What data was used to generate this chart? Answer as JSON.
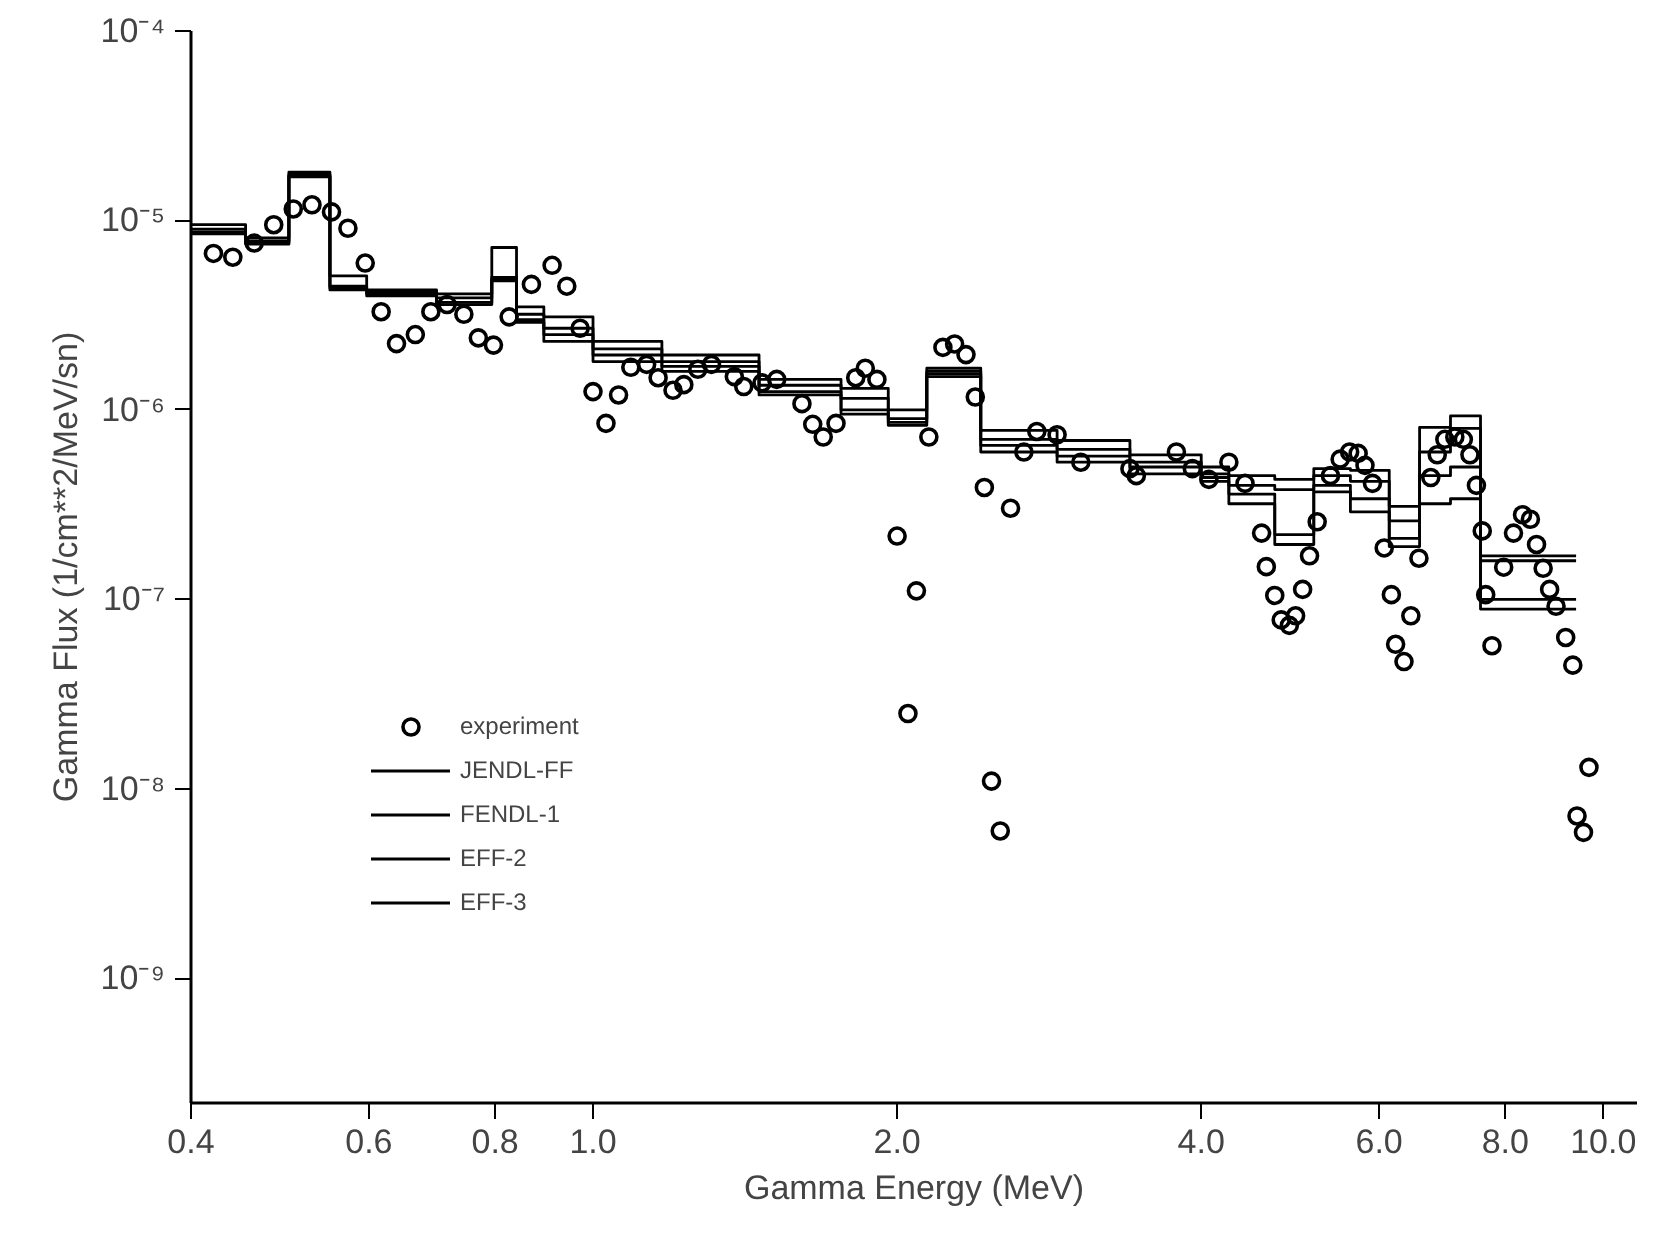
{
  "chart_data": {
    "type": "step",
    "xlabel": "Gamma Energy (MeV)",
    "ylabel": "Gamma Flux (1/cm**2/MeV/sn)",
    "log": "xy",
    "grid": false,
    "legend": "bottom left",
    "line_style": "solid",
    "xlim": [
      0.4,
      10.8
    ],
    "ylim": [
      2.2e-10,
      0.0001
    ],
    "xticks": [
      {
        "value": 0.4,
        "label": "0.4"
      },
      {
        "value": 0.6,
        "label": "0.6"
      },
      {
        "value": 0.8,
        "label": "0.8"
      },
      {
        "value": 1,
        "label": "1.0"
      },
      {
        "value": 2,
        "label": "2.0"
      },
      {
        "value": 4,
        "label": "4.0"
      },
      {
        "value": 6,
        "label": "6.0"
      },
      {
        "value": 8,
        "label": "8.0"
      },
      {
        "value": 10,
        "label": "10.0"
      }
    ],
    "yticks": [
      {
        "value": 1e-09,
        "label": "10⁻⁹"
      },
      {
        "value": 1e-08,
        "label": "10⁻⁸"
      },
      {
        "value": 1e-07,
        "label": "10⁻⁷"
      },
      {
        "value": 1e-06,
        "label": "10⁻⁶"
      },
      {
        "value": 1e-05,
        "label": "10⁻⁵"
      },
      {
        "value": 0.0001,
        "label": "10⁻⁴"
      }
    ],
    "series": [
      {
        "name": "experiment",
        "type": "scatter",
        "marker": "circle",
        "color": "#000000",
        "x": [
          0.421,
          0.44,
          0.462,
          0.483,
          0.505,
          0.527,
          0.551,
          0.572,
          0.595,
          0.617,
          0.639,
          0.667,
          0.691,
          0.717,
          0.745,
          0.77,
          0.797,
          0.826,
          0.869,
          0.911,
          0.942,
          0.971,
          1.0,
          1.03,
          1.06,
          1.09,
          1.13,
          1.16,
          1.2,
          1.23,
          1.27,
          1.31,
          1.38,
          1.41,
          1.47,
          1.52,
          1.61,
          1.65,
          1.69,
          1.74,
          1.82,
          1.86,
          1.91,
          2.0,
          2.05,
          2.09,
          2.15,
          2.22,
          2.28,
          2.34,
          2.39,
          2.44,
          2.48,
          2.53,
          2.59,
          2.67,
          2.75,
          2.88,
          3.04,
          3.4,
          3.45,
          3.78,
          3.92,
          4.07,
          4.26,
          4.42,
          4.59,
          4.64,
          4.73,
          4.8,
          4.89,
          4.96,
          5.04,
          5.12,
          5.21,
          5.37,
          5.49,
          5.61,
          5.72,
          5.81,
          5.91,
          6.07,
          6.17,
          6.23,
          6.35,
          6.45,
          6.57,
          6.75,
          6.85,
          6.97,
          7.13,
          7.27,
          7.38,
          7.49,
          7.59,
          7.65,
          7.76,
          7.97,
          8.15,
          8.32,
          8.47,
          8.59,
          8.72,
          8.85,
          8.98,
          9.18,
          9.33,
          9.42,
          9.56,
          9.68
        ],
        "values": [
          6.7e-06,
          6.4e-06,
          7.6e-06,
          9.5e-06,
          1.15e-05,
          1.21e-05,
          1.11e-05,
          9.1e-06,
          5.96e-06,
          3.3e-06,
          2.24e-06,
          2.5e-06,
          3.3e-06,
          3.6e-06,
          3.2e-06,
          2.4e-06,
          2.2e-06,
          3.1e-06,
          4.6e-06,
          5.8e-06,
          4.5e-06,
          2.7e-06,
          1.25e-06,
          8.5e-07,
          1.2e-06,
          1.68e-06,
          1.74e-06,
          1.48e-06,
          1.27e-06,
          1.36e-06,
          1.64e-06,
          1.74e-06,
          1.5e-06,
          1.33e-06,
          1.39e-06,
          1.45e-06,
          1.08e-06,
          8.4e-07,
          7.2e-07,
          8.5e-07,
          1.48e-06,
          1.66e-06,
          1.45e-06,
          2.16e-07,
          2.5e-08,
          1.11e-07,
          7.2e-07,
          2.14e-06,
          2.23e-06,
          1.96e-06,
          1.17e-06,
          3.9e-07,
          1.1e-08,
          6e-09,
          3.03e-07,
          6e-07,
          7.7e-07,
          7.4e-07,
          5.3e-07,
          4.9e-07,
          4.5e-07,
          6e-07,
          4.9e-07,
          4.3e-07,
          5.3e-07,
          4.1e-07,
          2.24e-07,
          1.49e-07,
          1.05e-07,
          7.8e-08,
          7.3e-08,
          8.2e-08,
          1.13e-07,
          1.7e-07,
          2.57e-07,
          4.5e-07,
          5.5e-07,
          6e-07,
          5.9e-07,
          5.1e-07,
          4.1e-07,
          1.87e-07,
          1.06e-07,
          5.8e-08,
          4.7e-08,
          8.2e-08,
          1.65e-07,
          4.4e-07,
          5.8e-07,
          7e-07,
          7.2e-07,
          7e-07,
          5.8e-07,
          4e-07,
          2.3e-07,
          1.06e-07,
          5.7e-08,
          1.48e-07,
          2.24e-07,
          2.8e-07,
          2.65e-07,
          1.95e-07,
          1.46e-07,
          1.13e-07,
          9.2e-08,
          6.3e-08,
          4.5e-08,
          7.2e-09,
          5.9e-09,
          1.3e-08
        ]
      },
      {
        "name": "JENDL-FF",
        "color": "#000000",
        "x": [
          0.4,
          0.453,
          0.5,
          0.549,
          0.597,
          0.7,
          0.794,
          0.84,
          0.894,
          1.0,
          1.17,
          1.46,
          1.76,
          1.96,
          2.14,
          2.42,
          2.88,
          3.4,
          4.0,
          4.26,
          4.73,
          5.17,
          5.62,
          6.14,
          6.58,
          7.06,
          7.56,
          9.4
        ],
        "values": [
          9.5e-06,
          8.1e-06,
          1.8e-05,
          5.1e-06,
          4.3e-06,
          4.1e-06,
          7.2e-06,
          3.5e-06,
          3.1e-06,
          2.3e-06,
          1.95e-06,
          1.45e-06,
          1.3e-06,
          1e-06,
          1.66e-06,
          7.8e-07,
          6.9e-07,
          5.8e-07,
          5e-07,
          4.5e-07,
          4.3e-07,
          4.9e-07,
          4.8e-07,
          3.1e-07,
          8.1e-07,
          9.3e-07,
          1.7e-07,
          1.7e-07
        ]
      },
      {
        "name": "FENDL-1",
        "color": "#000000",
        "x": [
          0.4,
          0.453,
          0.5,
          0.549,
          0.597,
          0.7,
          0.794,
          0.84,
          0.894,
          1.0,
          1.17,
          1.46,
          1.76,
          1.96,
          2.14,
          2.42,
          2.88,
          3.4,
          4.0,
          4.26,
          4.73,
          5.17,
          5.62,
          6.14,
          6.58,
          7.06,
          7.56,
          9.4
        ],
        "values": [
          9e-06,
          7.8e-06,
          1.75e-05,
          4.5e-06,
          4.2e-06,
          3.9e-06,
          5e-06,
          3.2e-06,
          2.7e-06,
          2.1e-06,
          1.8e-06,
          1.35e-06,
          1.15e-06,
          9e-07,
          1.6e-06,
          7e-07,
          6.2e-07,
          5.3e-07,
          4.6e-07,
          4e-07,
          3.8e-07,
          4.5e-07,
          4.2e-07,
          2.6e-07,
          6e-07,
          8e-07,
          1.6e-07,
          1.6e-07
        ]
      },
      {
        "name": "EFF-2",
        "color": "#000000",
        "x": [
          0.4,
          0.453,
          0.5,
          0.549,
          0.597,
          0.7,
          0.794,
          0.84,
          0.894,
          1.0,
          1.17,
          1.46,
          1.76,
          1.96,
          2.14,
          2.42,
          2.88,
          3.4,
          4.0,
          4.26,
          4.73,
          5.17,
          5.62,
          6.14,
          6.58,
          7.06,
          7.56,
          9.4
        ],
        "values": [
          8.7e-06,
          7.6e-06,
          1.72e-05,
          4.4e-06,
          4.1e-06,
          3.7e-06,
          4.9e-06,
          3e-06,
          2.5e-06,
          1.95e-06,
          1.7e-06,
          1.25e-06,
          1e-06,
          8.6e-07,
          1.55e-06,
          6.5e-07,
          5.7e-07,
          5e-07,
          4.4e-07,
          3.6e-07,
          2.2e-07,
          4e-07,
          3.4e-07,
          2.1e-07,
          4.5e-07,
          5e-07,
          1e-07,
          1e-07
        ]
      },
      {
        "name": "EFF-3",
        "color": "#000000",
        "x": [
          0.4,
          0.453,
          0.5,
          0.549,
          0.597,
          0.7,
          0.794,
          0.84,
          0.894,
          1.0,
          1.17,
          1.46,
          1.76,
          1.96,
          2.14,
          2.42,
          2.88,
          3.4,
          4.0,
          4.26,
          4.73,
          5.17,
          5.62,
          6.14,
          6.58,
          7.06,
          7.56,
          9.4
        ],
        "values": [
          8.5e-06,
          7.5e-06,
          1.7e-05,
          4.3e-06,
          4e-06,
          3.6e-06,
          4.8e-06,
          2.9e-06,
          2.3e-06,
          1.8e-06,
          1.6e-06,
          1.2e-06,
          9.5e-07,
          8.3e-07,
          1.5e-06,
          6e-07,
          5.3e-07,
          4.6e-07,
          4.2e-07,
          3.2e-07,
          1.95e-07,
          3.7e-07,
          2.9e-07,
          1.9e-07,
          3.2e-07,
          3.4e-07,
          8.9e-08,
          8.9e-08
        ]
      }
    ]
  }
}
